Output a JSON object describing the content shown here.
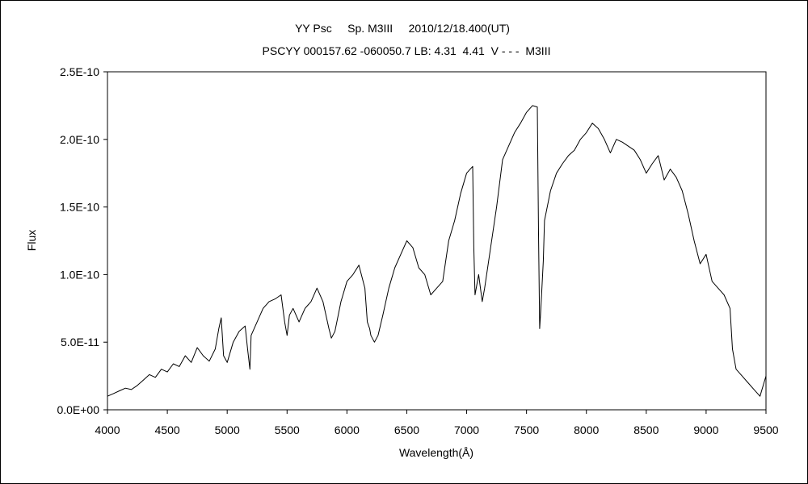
{
  "chart_data": {
    "type": "line",
    "title": "YY Psc     Sp. M3III     2010/12/18.400(UT)",
    "subtitle": "PSCYY 000157.62 -060050.7 LB: 4.31  4.41  V - - -  M3III",
    "xlabel": "Wavelength(Å)",
    "ylabel": "Flux",
    "xlim": [
      4000,
      9500
    ],
    "ylim": [
      0,
      2.5e-10
    ],
    "x_ticks": [
      4000,
      4500,
      5000,
      5500,
      6000,
      6500,
      7000,
      7500,
      8000,
      8500,
      9000,
      9500
    ],
    "x_tick_labels": [
      "4000",
      "4500",
      "5000",
      "5500",
      "6000",
      "6500",
      "7000",
      "7500",
      "8000",
      "8500",
      "9000",
      "9500"
    ],
    "y_ticks": [
      0,
      5e-11,
      1e-10,
      1.5e-10,
      2e-10,
      2.5e-10
    ],
    "y_tick_labels": [
      "0.0E+00",
      "5.0E-11",
      "1.0E-10",
      "1.5E-10",
      "2.0E-10",
      "2.5E-10"
    ],
    "grid": false,
    "legend": "none",
    "line_color": "#000000",
    "series": [
      {
        "x": [
          4000,
          4050,
          4100,
          4150,
          4200,
          4250,
          4300,
          4350,
          4400,
          4450,
          4500,
          4550,
          4600,
          4650,
          4700,
          4750,
          4800,
          4850,
          4900,
          4930,
          4950,
          4970,
          5000,
          5050,
          5100,
          5150,
          5170,
          5190,
          5200,
          5250,
          5300,
          5350,
          5400,
          5450,
          5480,
          5500,
          5520,
          5550,
          5600,
          5650,
          5700,
          5750,
          5800,
          5850,
          5870,
          5900,
          5950,
          6000,
          6050,
          6100,
          6150,
          6170,
          6190,
          6200,
          6230,
          6260,
          6300,
          6350,
          6400,
          6450,
          6500,
          6550,
          6600,
          6650,
          6700,
          6750,
          6800,
          6850,
          6900,
          6950,
          7000,
          7050,
          7060,
          7070,
          7100,
          7130,
          7150,
          7200,
          7250,
          7300,
          7350,
          7400,
          7450,
          7500,
          7550,
          7590,
          7600,
          7610,
          7620,
          7640,
          7650,
          7700,
          7750,
          7800,
          7850,
          7900,
          7950,
          8000,
          8050,
          8100,
          8150,
          8200,
          8250,
          8300,
          8350,
          8400,
          8450,
          8500,
          8550,
          8600,
          8650,
          8700,
          8750,
          8800,
          8850,
          8900,
          8950,
          9000,
          9050,
          9100,
          9150,
          9200,
          9220,
          9250,
          9300,
          9350,
          9400,
          9450,
          9500
        ],
        "y": [
          1e-11,
          1.2e-11,
          1.4e-11,
          1.6e-11,
          1.5e-11,
          1.8e-11,
          2.2e-11,
          2.6e-11,
          2.4e-11,
          3e-11,
          2.8e-11,
          3.4e-11,
          3.2e-11,
          4e-11,
          3.5e-11,
          4.6e-11,
          4e-11,
          3.6e-11,
          4.5e-11,
          6e-11,
          6.8e-11,
          4e-11,
          3.5e-11,
          5e-11,
          5.8e-11,
          6.2e-11,
          4.5e-11,
          3e-11,
          5.5e-11,
          6.5e-11,
          7.5e-11,
          8e-11,
          8.2e-11,
          8.5e-11,
          6.5e-11,
          5.5e-11,
          7e-11,
          7.5e-11,
          6.5e-11,
          7.5e-11,
          8e-11,
          9e-11,
          8e-11,
          6e-11,
          5.3e-11,
          5.8e-11,
          8e-11,
          9.5e-11,
          1e-10,
          1.07e-10,
          9e-11,
          6.5e-11,
          6e-11,
          5.5e-11,
          5e-11,
          5.5e-11,
          7e-11,
          9e-11,
          1.05e-10,
          1.15e-10,
          1.25e-10,
          1.2e-10,
          1.05e-10,
          1e-10,
          8.5e-11,
          9e-11,
          9.5e-11,
          1.25e-10,
          1.4e-10,
          1.6e-10,
          1.75e-10,
          1.8e-10,
          1.2e-10,
          8.5e-11,
          1e-10,
          8e-11,
          9e-11,
          1.2e-10,
          1.5e-10,
          1.85e-10,
          1.95e-10,
          2.05e-10,
          2.12e-10,
          2.2e-10,
          2.25e-10,
          2.24e-10,
          1.3e-10,
          6e-11,
          7.5e-11,
          1.1e-10,
          1.4e-10,
          1.62e-10,
          1.75e-10,
          1.82e-10,
          1.88e-10,
          1.92e-10,
          2e-10,
          2.05e-10,
          2.12e-10,
          2.08e-10,
          2e-10,
          1.9e-10,
          2e-10,
          1.98e-10,
          1.95e-10,
          1.92e-10,
          1.85e-10,
          1.75e-10,
          1.82e-10,
          1.88e-10,
          1.7e-10,
          1.78e-10,
          1.72e-10,
          1.62e-10,
          1.45e-10,
          1.25e-10,
          1.08e-10,
          1.15e-10,
          9.5e-11,
          9e-11,
          8.5e-11,
          7.5e-11,
          4.5e-11,
          3e-11,
          2.5e-11,
          2e-11,
          1.5e-11,
          1e-11,
          2.5e-11
        ]
      }
    ]
  }
}
